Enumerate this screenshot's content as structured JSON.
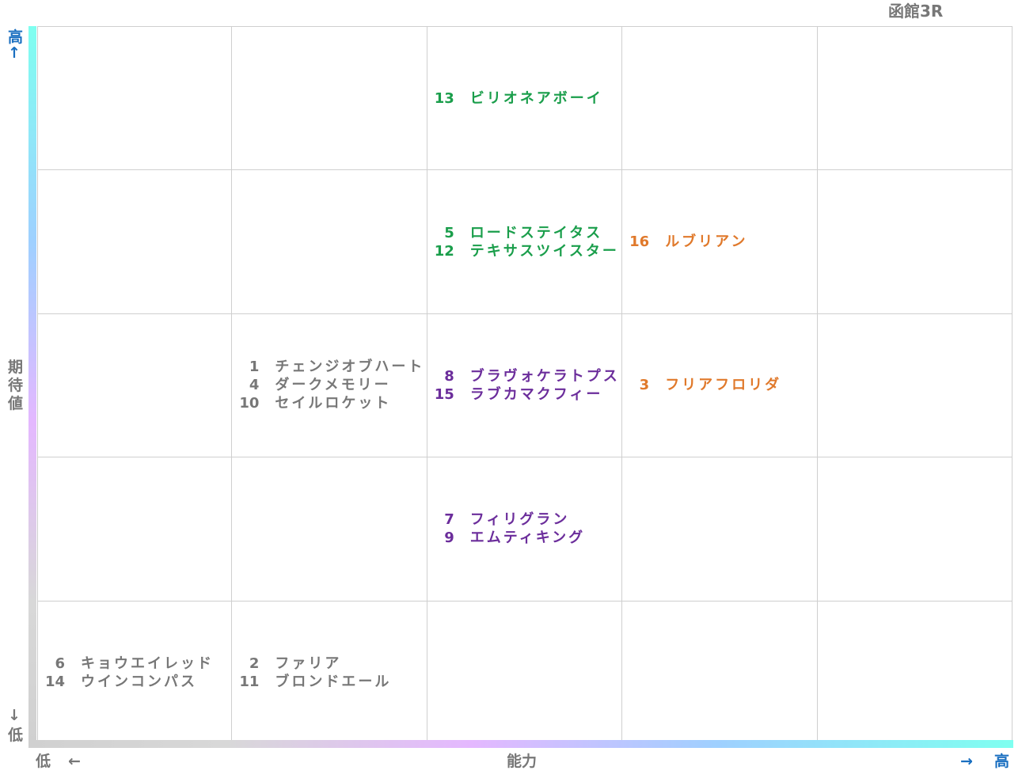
{
  "title": "函館3R",
  "y_axis": {
    "high": "高",
    "high_arrow": "↑",
    "label": "期待値",
    "low_arrow": "↓",
    "low": "低"
  },
  "x_axis": {
    "low": "低",
    "low_arrow": "←",
    "label": "能力",
    "high_arrow": "→",
    "high": "高"
  },
  "grid": {
    "rows": [
      {
        "cells": [
          {},
          {},
          {
            "color": "#1a9e4b",
            "entries": [
              {
                "number": 13,
                "name": "ビリオネアボーイ"
              }
            ]
          },
          {},
          {}
        ]
      },
      {
        "cells": [
          {},
          {},
          {
            "color": "#1a9e4b",
            "entries": [
              {
                "number": 5,
                "name": "ロードステイタス"
              },
              {
                "number": 12,
                "name": "テキサスツイスター"
              }
            ]
          },
          {
            "color": "#e0792b",
            "entries": [
              {
                "number": 16,
                "name": "ルブリアン"
              }
            ]
          },
          {}
        ]
      },
      {
        "cells": [
          {},
          {
            "color": "#777777",
            "entries": [
              {
                "number": 1,
                "name": "チェンジオブハート"
              },
              {
                "number": 4,
                "name": "ダークメモリー"
              },
              {
                "number": 10,
                "name": "セイルロケット"
              }
            ]
          },
          {
            "color": "#6b2d9b",
            "entries": [
              {
                "number": 8,
                "name": "ブラヴォケラトプス"
              },
              {
                "number": 15,
                "name": "ラブカマクフィー"
              }
            ]
          },
          {
            "color": "#e0792b",
            "entries": [
              {
                "number": 3,
                "name": "フリアフロリダ"
              }
            ]
          },
          {}
        ]
      },
      {
        "cells": [
          {},
          {},
          {
            "color": "#6b2d9b",
            "entries": [
              {
                "number": 7,
                "name": "フィリグラン"
              },
              {
                "number": 9,
                "name": "エムティキング"
              }
            ]
          },
          {},
          {}
        ]
      },
      {
        "cells": [
          {
            "color": "#777777",
            "entries": [
              {
                "number": 6,
                "name": "キョウエイレッド"
              },
              {
                "number": 14,
                "name": "ウインコンパス"
              }
            ]
          },
          {
            "color": "#777777",
            "entries": [
              {
                "number": 2,
                "name": "ファリア"
              },
              {
                "number": 11,
                "name": "ブロンドエール"
              }
            ]
          },
          {},
          {},
          {}
        ]
      }
    ]
  }
}
